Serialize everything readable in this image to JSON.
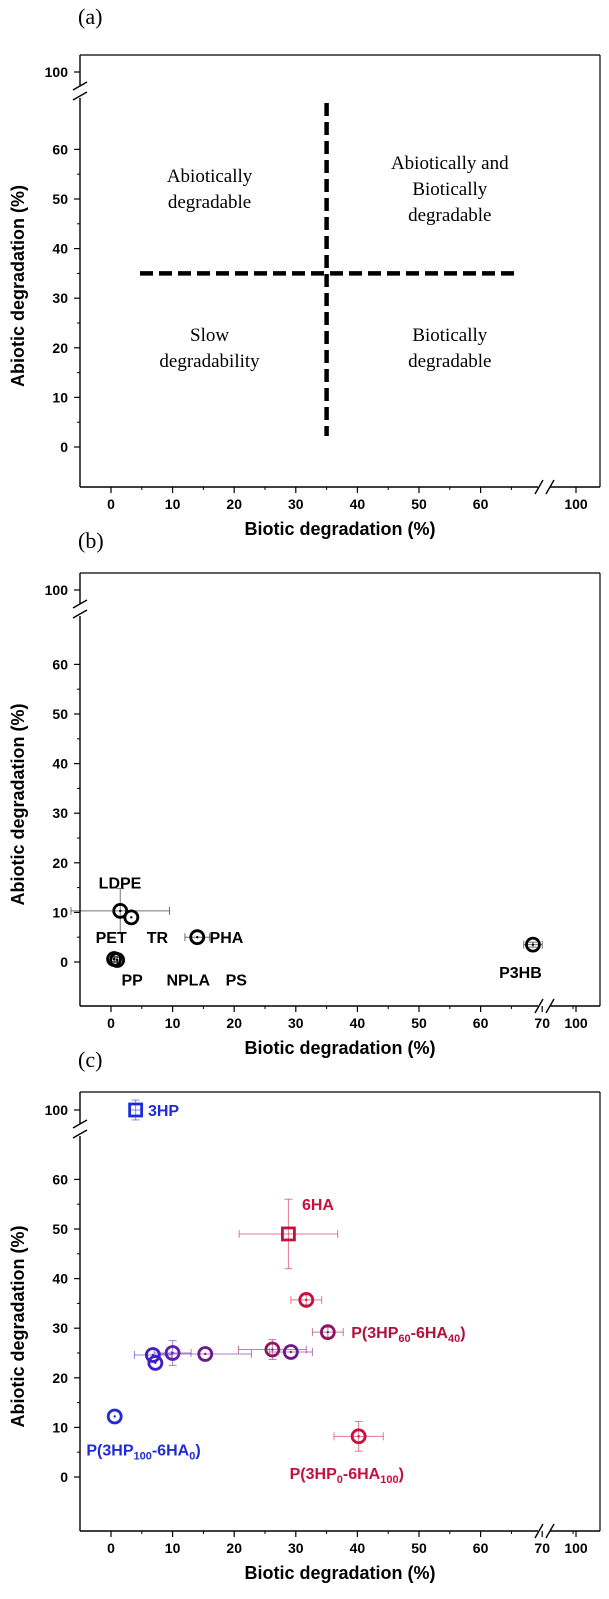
{
  "chart_data": [
    {
      "panel_label": "(a)",
      "type": "scatter",
      "xlabel": "Biotic degradation (%)",
      "ylabel": "Abiotic degradation (%)",
      "x_ticks": [
        "0",
        "10",
        "20",
        "30",
        "40",
        "50",
        "60",
        "100"
      ],
      "y_ticks": [
        "0",
        "10",
        "20",
        "30",
        "40",
        "50",
        "60",
        "100"
      ],
      "axis_break": {
        "x": "between 65 and 100",
        "y": "between 70 and 100"
      },
      "threshold_lines": {
        "x": 35,
        "y": 35,
        "style": "dashed"
      },
      "regions": [
        {
          "lines": [
            "Abiotically",
            "degradable"
          ],
          "x": 16,
          "y": 52
        },
        {
          "lines": [
            "Abiotically and",
            "Biotically",
            "degradable"
          ],
          "x": 55,
          "y": 52
        },
        {
          "lines": [
            "Slow",
            "degradability"
          ],
          "x": 16,
          "y": 20
        },
        {
          "lines": [
            "Biotically",
            "degradable"
          ],
          "x": 55,
          "y": 20
        }
      ],
      "points": []
    },
    {
      "panel_label": "(b)",
      "type": "scatter",
      "xlabel": "Biotic degradation (%)",
      "ylabel": "Abiotic degradation (%)",
      "x_ticks": [
        "0",
        "10",
        "20",
        "30",
        "40",
        "50",
        "60",
        "70",
        "100"
      ],
      "y_ticks": [
        "0",
        "10",
        "20",
        "30",
        "40",
        "50",
        "60",
        "100"
      ],
      "axis_break": {
        "x": "between 70 and 100",
        "y": "between 70 and 100"
      },
      "points": [
        {
          "x": 1.5,
          "y": 10.3,
          "xerr": 8,
          "yerr": 4.5,
          "color": "#000000",
          "marker": "circle"
        },
        {
          "x": 3.3,
          "y": 9.0,
          "xerr": 0,
          "yerr": 0,
          "color": "#000000",
          "marker": "circle"
        },
        {
          "x": 14.0,
          "y": 5.0,
          "xerr": 2,
          "yerr": 0,
          "color": "#000000",
          "marker": "circle"
        },
        {
          "x": 0.5,
          "y": 0.6,
          "xerr": 0.5,
          "yerr": 0.5,
          "color": "#000000",
          "marker": "circle"
        },
        {
          "x": 1.0,
          "y": 0.4,
          "xerr": 0.5,
          "yerr": 0.5,
          "color": "#000000",
          "marker": "circle"
        },
        {
          "x": 68.5,
          "y": 3.5,
          "xerr": 1.5,
          "yerr": 0.5,
          "color": "#000000",
          "marker": "circle"
        }
      ],
      "labels": [
        {
          "text": "LDPE",
          "x": -2,
          "y": 16,
          "color": "#000000"
        },
        {
          "text": "PET",
          "x": -2.5,
          "y": 5,
          "color": "#000000"
        },
        {
          "text": "TR",
          "x": 5.8,
          "y": 5,
          "color": "#000000"
        },
        {
          "text": "PHA",
          "x": 16,
          "y": 5,
          "color": "#000000"
        },
        {
          "text": "PP",
          "x": 1.7,
          "y": -3.5,
          "color": "#000000"
        },
        {
          "text": "NPLA",
          "x": 9,
          "y": -3.5,
          "color": "#000000"
        },
        {
          "text": "PS",
          "x": 18.6,
          "y": -3.5,
          "color": "#000000"
        },
        {
          "text": "P3HB",
          "x": 63,
          "y": -2,
          "color": "#000000"
        }
      ]
    },
    {
      "panel_label": "(c)",
      "type": "scatter",
      "xlabel": "Biotic degradation (%)",
      "ylabel": "Abiotic degradation (%)",
      "x_ticks": [
        "0",
        "10",
        "20",
        "30",
        "40",
        "50",
        "60",
        "70",
        "100"
      ],
      "y_ticks": [
        "0",
        "10",
        "20",
        "30",
        "40",
        "50",
        "60",
        "100"
      ],
      "axis_break": {
        "x": "between 70 and 100",
        "y": "between 70 and 100"
      },
      "points": [
        {
          "x": 4.0,
          "y": 100,
          "xerr": 1,
          "yerr": 2,
          "color": "#1f2bd9",
          "marker": "square"
        },
        {
          "x": 28.8,
          "y": 49.0,
          "xerr": 8,
          "yerr": 7,
          "color": "#c8103e",
          "marker": "square"
        },
        {
          "x": 31.7,
          "y": 35.7,
          "xerr": 2.5,
          "yerr": 1,
          "color": "#c8103e",
          "marker": "circle"
        },
        {
          "x": 35.2,
          "y": 29.2,
          "xerr": 2.5,
          "yerr": 1,
          "color": "#8e1465",
          "marker": "circle"
        },
        {
          "x": 26.2,
          "y": 25.7,
          "xerr": 5.5,
          "yerr": 2,
          "color": "#8e1465",
          "marker": "circle"
        },
        {
          "x": 29.2,
          "y": 25.2,
          "xerr": 3.5,
          "yerr": 0,
          "color": "#6a1a8c",
          "marker": "circle"
        },
        {
          "x": 15.3,
          "y": 24.8,
          "xerr": 7.5,
          "yerr": 0,
          "color": "#6a1a8c",
          "marker": "circle"
        },
        {
          "x": 10.0,
          "y": 25.0,
          "xerr": 3,
          "yerr": 2.5,
          "color": "#5a1fb0",
          "marker": "circle"
        },
        {
          "x": 6.8,
          "y": 24.6,
          "xerr": 3,
          "yerr": 0,
          "color": "#3f1fc2",
          "marker": "circle"
        },
        {
          "x": 7.2,
          "y": 23.0,
          "xerr": 0,
          "yerr": 0,
          "color": "#3f1fc2",
          "marker": "circle"
        },
        {
          "x": 0.6,
          "y": 12.2,
          "xerr": 0,
          "yerr": 0,
          "color": "#1f2bd9",
          "marker": "circle"
        },
        {
          "x": 40.2,
          "y": 8.2,
          "xerr": 4,
          "yerr": 3,
          "color": "#c8103e",
          "marker": "circle"
        }
      ],
      "labels": [
        {
          "text": "3HP",
          "x": 6,
          "y": 99.5,
          "color": "#1f2bd9"
        },
        {
          "text": "6HA",
          "x": 31,
          "y": 55,
          "color": "#c8103e"
        },
        {
          "text": "P(3HP",
          "sub1": "60",
          "mid": "-6HA",
          "sub2": "40",
          "tail": ")",
          "x": 39,
          "y": 29.2,
          "color": "#b0123e"
        },
        {
          "text": "P(3HP",
          "sub1": "100",
          "mid": "-6HA",
          "sub2": "0",
          "tail": ")",
          "x": -4,
          "y": 5.5,
          "color": "#1f2bd9"
        },
        {
          "text": "P(3HP",
          "sub1": "0",
          "mid": "-6HA",
          "sub2": "100",
          "tail": ")",
          "x": 29,
          "y": 0.8,
          "color": "#c8103e"
        }
      ]
    }
  ]
}
